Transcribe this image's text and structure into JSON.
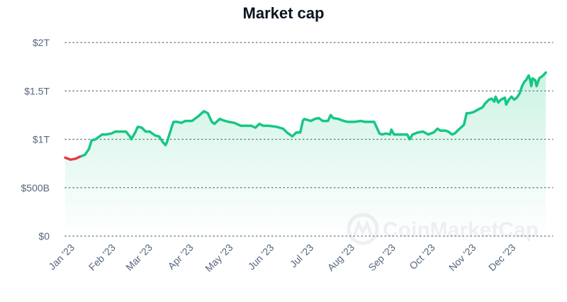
{
  "chart_data": {
    "type": "area",
    "title": "Market cap",
    "xlabel": "",
    "ylabel": "",
    "ylim": [
      0,
      2
    ],
    "y_unit": "trillion USD",
    "y_ticks": [
      {
        "value": 0,
        "label": "$0"
      },
      {
        "value": 0.5,
        "label": "$500B"
      },
      {
        "value": 1,
        "label": "$1T"
      },
      {
        "value": 1.5,
        "label": "$1.5T"
      },
      {
        "value": 2,
        "label": "$2T"
      }
    ],
    "x_ticks": [
      {
        "day": 0,
        "label": "Jan '23"
      },
      {
        "day": 31,
        "label": "Feb '23"
      },
      {
        "day": 59,
        "label": "Mar '23"
      },
      {
        "day": 90,
        "label": "Apr '23"
      },
      {
        "day": 120,
        "label": "May '23"
      },
      {
        "day": 151,
        "label": "Jun '23"
      },
      {
        "day": 181,
        "label": "Jul '23"
      },
      {
        "day": 212,
        "label": "Aug '23"
      },
      {
        "day": 243,
        "label": "Sep '23"
      },
      {
        "day": 273,
        "label": "Oct '23"
      },
      {
        "day": 304,
        "label": "Nov '23"
      },
      {
        "day": 334,
        "label": "Dec '23"
      }
    ],
    "xlim_days": [
      0,
      365
    ],
    "grid": "horizontal dotted",
    "watermark": "CoinMarketCap",
    "colors": {
      "up": "#16c784",
      "down": "#ea3943",
      "fill": "#16c784",
      "grid": "#58667e"
    },
    "series": [
      {
        "name": "Market cap",
        "points": [
          [
            0,
            0.81
          ],
          [
            4,
            0.79
          ],
          [
            8,
            0.8
          ],
          [
            11,
            0.82
          ],
          [
            15,
            0.84
          ],
          [
            18,
            0.9
          ],
          [
            20,
            0.99
          ],
          [
            23,
            1.0
          ],
          [
            26,
            1.03
          ],
          [
            28,
            1.05
          ],
          [
            31,
            1.05
          ],
          [
            35,
            1.06
          ],
          [
            38,
            1.08
          ],
          [
            42,
            1.08
          ],
          [
            46,
            1.08
          ],
          [
            49,
            1.03
          ],
          [
            50,
            1.0
          ],
          [
            53,
            1.07
          ],
          [
            55,
            1.13
          ],
          [
            58,
            1.12
          ],
          [
            61,
            1.08
          ],
          [
            64,
            1.08
          ],
          [
            68,
            1.04
          ],
          [
            71,
            1.03
          ],
          [
            74,
            0.97
          ],
          [
            76,
            0.94
          ],
          [
            77,
            0.97
          ],
          [
            81,
            1.14
          ],
          [
            82,
            1.18
          ],
          [
            85,
            1.18
          ],
          [
            88,
            1.17
          ],
          [
            91,
            1.19
          ],
          [
            96,
            1.19
          ],
          [
            98,
            1.21
          ],
          [
            101,
            1.24
          ],
          [
            105,
            1.29
          ],
          [
            108,
            1.27
          ],
          [
            111,
            1.18
          ],
          [
            113,
            1.16
          ],
          [
            117,
            1.21
          ],
          [
            121,
            1.19
          ],
          [
            124,
            1.18
          ],
          [
            128,
            1.17
          ],
          [
            133,
            1.14
          ],
          [
            137,
            1.14
          ],
          [
            141,
            1.14
          ],
          [
            144,
            1.12
          ],
          [
            147,
            1.16
          ],
          [
            150,
            1.14
          ],
          [
            154,
            1.14
          ],
          [
            160,
            1.13
          ],
          [
            165,
            1.11
          ],
          [
            168,
            1.07
          ],
          [
            172,
            1.03
          ],
          [
            175,
            1.07
          ],
          [
            178,
            1.07
          ],
          [
            180,
            1.19
          ],
          [
            181,
            1.21
          ],
          [
            186,
            1.19
          ],
          [
            189,
            1.21
          ],
          [
            192,
            1.22
          ],
          [
            195,
            1.19
          ],
          [
            199,
            1.19
          ],
          [
            201,
            1.25
          ],
          [
            203,
            1.22
          ],
          [
            207,
            1.21
          ],
          [
            211,
            1.19
          ],
          [
            214,
            1.18
          ],
          [
            219,
            1.18
          ],
          [
            224,
            1.19
          ],
          [
            227,
            1.18
          ],
          [
            234,
            1.18
          ],
          [
            236,
            1.12
          ],
          [
            238,
            1.06
          ],
          [
            240,
            1.05
          ],
          [
            243,
            1.06
          ],
          [
            246,
            1.05
          ],
          [
            247,
            1.1
          ],
          [
            249,
            1.05
          ],
          [
            254,
            1.05
          ],
          [
            259,
            1.05
          ],
          [
            261,
            1.0
          ],
          [
            263,
            1.05
          ],
          [
            267,
            1.07
          ],
          [
            271,
            1.08
          ],
          [
            275,
            1.05
          ],
          [
            279,
            1.07
          ],
          [
            282,
            1.11
          ],
          [
            284,
            1.09
          ],
          [
            288,
            1.09
          ],
          [
            290,
            1.08
          ],
          [
            293,
            1.05
          ],
          [
            295,
            1.06
          ],
          [
            298,
            1.1
          ],
          [
            302,
            1.15
          ],
          [
            304,
            1.27
          ],
          [
            306,
            1.27
          ],
          [
            309,
            1.28
          ],
          [
            313,
            1.31
          ],
          [
            316,
            1.33
          ],
          [
            318,
            1.37
          ],
          [
            321,
            1.41
          ],
          [
            323,
            1.42
          ],
          [
            325,
            1.39
          ],
          [
            326,
            1.44
          ],
          [
            328,
            1.38
          ],
          [
            330,
            1.41
          ],
          [
            333,
            1.43
          ],
          [
            334,
            1.36
          ],
          [
            336,
            1.41
          ],
          [
            338,
            1.44
          ],
          [
            340,
            1.41
          ],
          [
            342,
            1.43
          ],
          [
            344,
            1.47
          ],
          [
            346,
            1.55
          ],
          [
            348,
            1.6
          ],
          [
            349,
            1.61
          ],
          [
            351,
            1.66
          ],
          [
            352,
            1.62
          ],
          [
            353,
            1.55
          ],
          [
            354,
            1.63
          ],
          [
            356,
            1.61
          ],
          [
            357,
            1.55
          ],
          [
            359,
            1.63
          ],
          [
            362,
            1.66
          ],
          [
            364,
            1.69
          ]
        ],
        "below_start_until_day": 12
      }
    ]
  }
}
